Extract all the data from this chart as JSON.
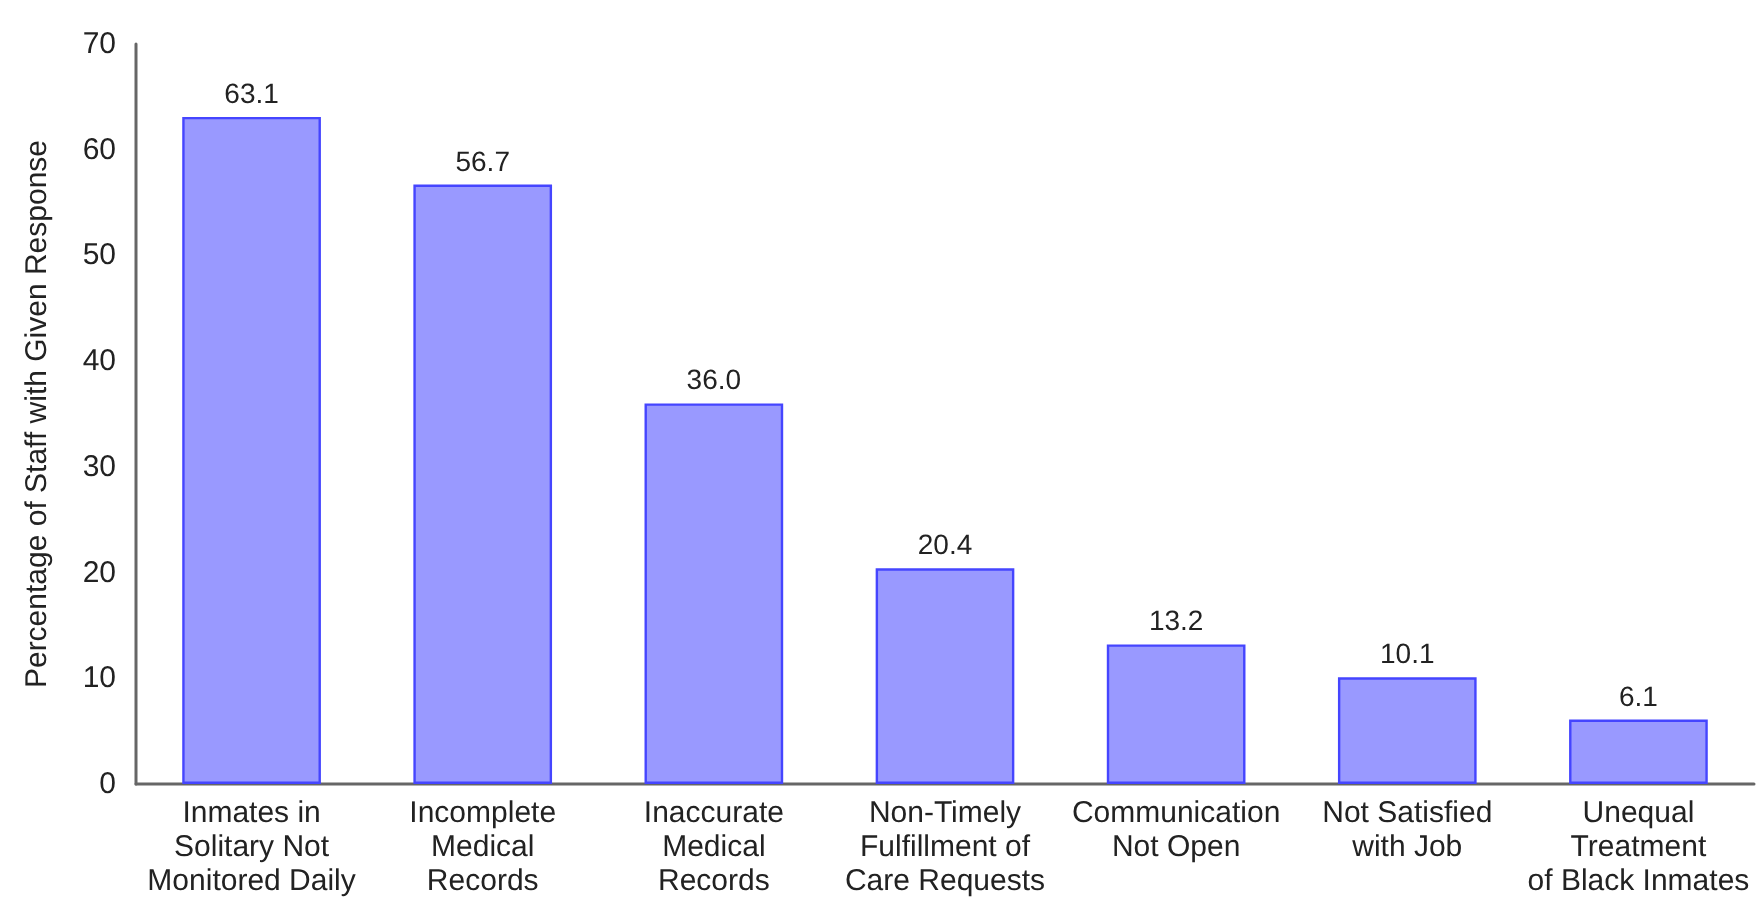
{
  "chart_data": {
    "type": "bar",
    "ylabel": "Percentage of Staff with Given Response",
    "categories": [
      "Inmates in\nSolitary Not\nMonitored Daily",
      "Incomplete\nMedical\nRecords",
      "Inaccurate\nMedical\nRecords",
      "Non-Timely\nFulfillment of\nCare Requests",
      "Communication\nNot Open",
      "Not Satisfied\nwith Job",
      "Unequal\nTreatment\nof Black Inmates"
    ],
    "values": [
      63.1,
      56.7,
      36.0,
      20.4,
      13.2,
      10.1,
      6.1
    ],
    "value_labels": [
      "63.1",
      "56.7",
      "36.0",
      "20.4",
      "13.2",
      "10.1",
      "6.1"
    ],
    "color": "#9999ff",
    "ylim": [
      0,
      70
    ],
    "yticks": [
      0,
      10,
      20,
      30,
      40,
      50,
      60,
      70
    ],
    "grid": false
  }
}
